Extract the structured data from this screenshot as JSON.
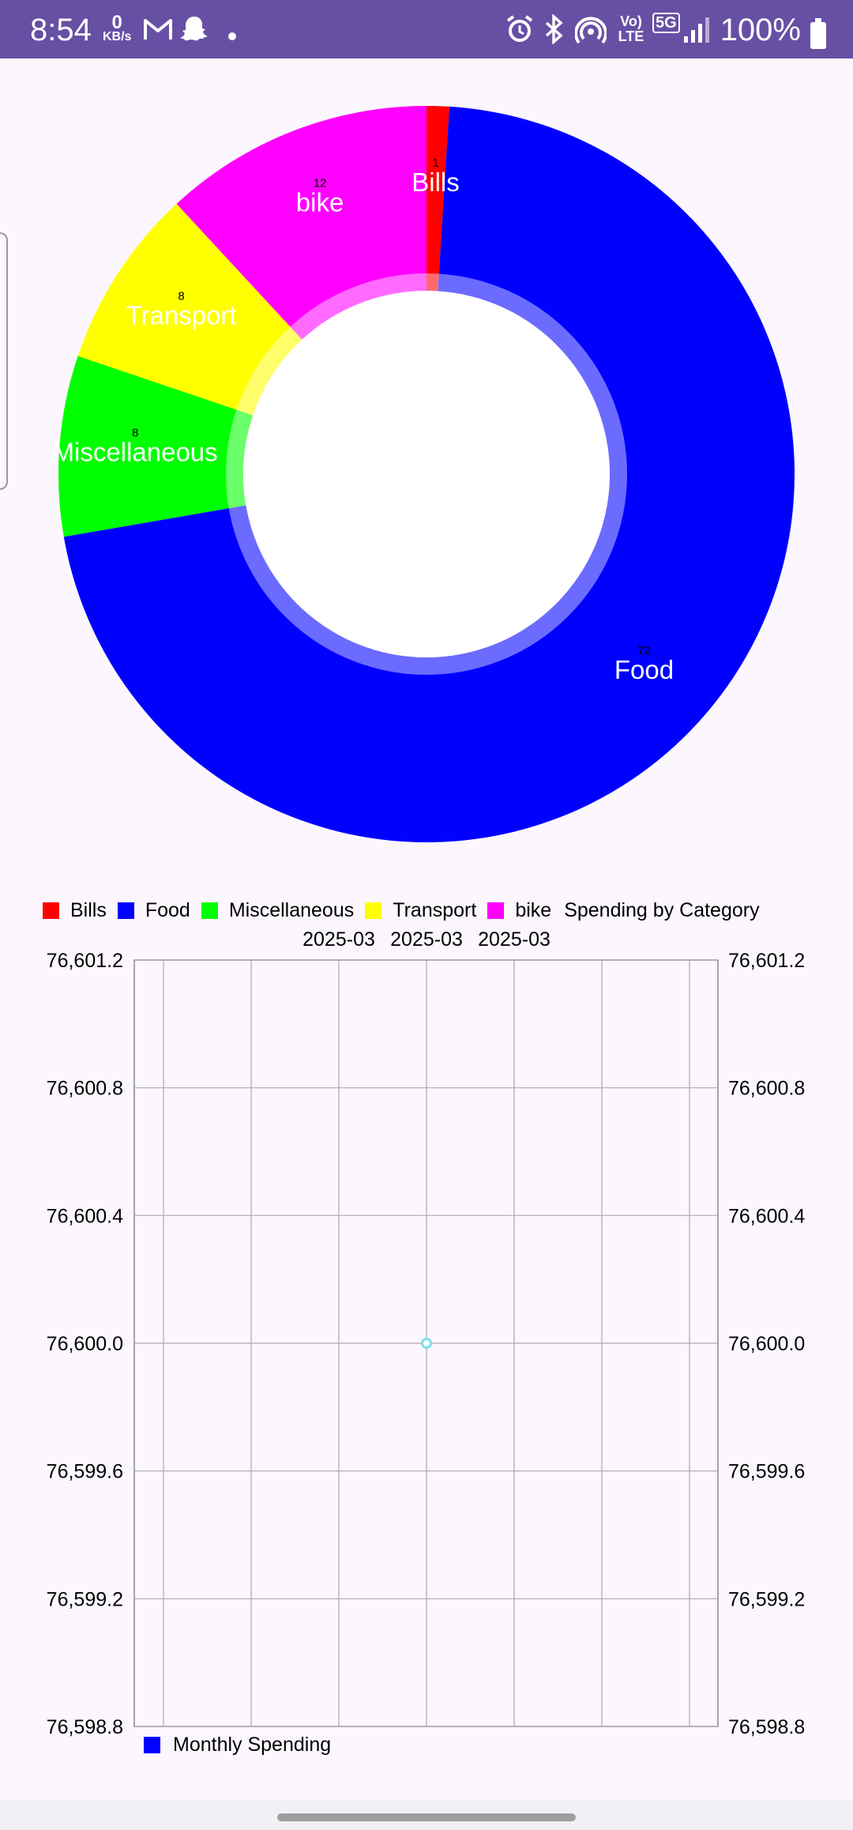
{
  "status_bar": {
    "time": "8:54",
    "net_speed_value": "0",
    "net_speed_unit": "KB/s",
    "battery": "100%",
    "icons": [
      "gmail-icon",
      "snapchat-icon",
      "dot-icon",
      "alarm-icon",
      "bluetooth-icon",
      "hotspot-icon",
      "volte-icon",
      "5g-icon",
      "signal-icon",
      "battery-icon"
    ],
    "volte_label": "Vo) LTE",
    "fiveg_label": "5G",
    "bar_color": "#6750A4"
  },
  "chart_data": [
    {
      "type": "pie",
      "style": "donut",
      "title": "",
      "description": "Spending by Category",
      "slices": [
        {
          "label": "Bills",
          "value": 1,
          "value_label": "1",
          "color": "#FF0000"
        },
        {
          "label": "Food",
          "value": 72,
          "value_label": "72",
          "color": "#0000FF"
        },
        {
          "label": "Miscellaneous",
          "value": 8,
          "value_label": "8",
          "color": "#00FF00"
        },
        {
          "label": "Transport",
          "value": 8,
          "value_label": "8",
          "color": "#FFFF00"
        },
        {
          "label": "bike",
          "value": 12,
          "value_label": "12",
          "color": "#FF00FF"
        }
      ],
      "legend_placement": "bottom-left"
    },
    {
      "type": "line",
      "title": "",
      "series": [
        {
          "name": "Monthly Spending",
          "x": [
            "2025-03"
          ],
          "values": [
            76600.0
          ],
          "color": "#0000FF",
          "point_color": "#80DEEA"
        }
      ],
      "x_tick_labels": [
        "2025-03",
        "2025-03",
        "2025-03"
      ],
      "y_tick_labels": [
        "76,601.2",
        "76,600.8",
        "76,600.4",
        "76,600.0",
        "76,599.6",
        "76,599.2",
        "76,598.8"
      ],
      "ylim": [
        76598.8,
        76601.2
      ],
      "grid": true,
      "dual_y_axis": true,
      "legend_placement": "bottom-left"
    }
  ]
}
